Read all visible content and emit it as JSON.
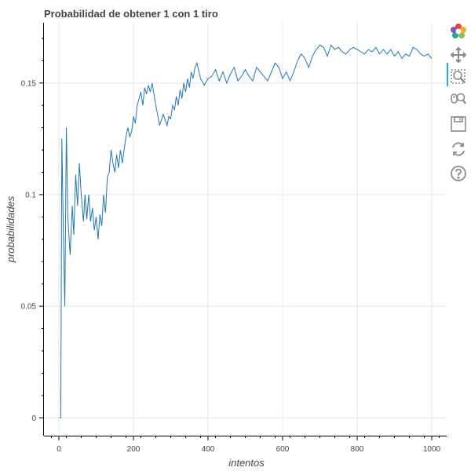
{
  "chart_data": {
    "type": "line",
    "title": "Probabilidad de obtener 1 con 1 tiro",
    "xlabel": "intentos",
    "ylabel": "probabilidades",
    "xlim": [
      -40,
      1040
    ],
    "ylim": [
      -0.008,
      0.177
    ],
    "xticks": [
      0,
      200,
      400,
      600,
      800,
      1000
    ],
    "xtick_labels": [
      "0",
      "200",
      "400",
      "600",
      "800",
      "1000"
    ],
    "yticks": [
      0,
      0.05,
      0.1,
      0.15
    ],
    "ytick_labels": [
      "0",
      "0.05",
      "0.1",
      "0.15"
    ],
    "grid": true,
    "series": [
      {
        "color": "#1f77b4",
        "x": [
          1,
          5,
          8,
          12,
          16,
          20,
          24,
          30,
          36,
          40,
          45,
          50,
          55,
          60,
          66,
          70,
          75,
          80,
          85,
          90,
          95,
          100,
          105,
          110,
          115,
          120,
          125,
          130,
          135,
          140,
          145,
          150,
          155,
          160,
          165,
          170,
          175,
          180,
          185,
          190,
          195,
          200,
          205,
          210,
          215,
          220,
          225,
          230,
          235,
          240,
          245,
          250,
          260,
          270,
          280,
          290,
          295,
          300,
          305,
          310,
          315,
          320,
          325,
          330,
          335,
          340,
          345,
          350,
          355,
          360,
          365,
          370,
          380,
          390,
          400,
          410,
          420,
          430,
          440,
          450,
          460,
          470,
          480,
          490,
          500,
          510,
          520,
          530,
          540,
          550,
          560,
          570,
          580,
          590,
          600,
          610,
          620,
          630,
          640,
          650,
          660,
          670,
          680,
          690,
          700,
          710,
          720,
          730,
          740,
          750,
          760,
          770,
          780,
          790,
          800,
          810,
          820,
          830,
          840,
          850,
          860,
          870,
          880,
          890,
          900,
          910,
          920,
          930,
          940,
          950,
          960,
          970,
          980,
          990,
          1000
        ],
        "y": [
          0,
          0,
          0.125,
          0.083,
          0.05,
          0.13,
          0.09,
          0.073,
          0.095,
          0.082,
          0.109,
          0.095,
          0.114,
          0.1,
          0.088,
          0.1,
          0.089,
          0.1,
          0.088,
          0.094,
          0.084,
          0.09,
          0.08,
          0.091,
          0.086,
          0.1,
          0.092,
          0.108,
          0.11,
          0.12,
          0.114,
          0.11,
          0.118,
          0.112,
          0.12,
          0.114,
          0.12,
          0.126,
          0.13,
          0.126,
          0.128,
          0.135,
          0.132,
          0.14,
          0.143,
          0.146,
          0.14,
          0.148,
          0.145,
          0.149,
          0.146,
          0.15,
          0.14,
          0.131,
          0.136,
          0.131,
          0.135,
          0.134,
          0.14,
          0.138,
          0.144,
          0.14,
          0.147,
          0.143,
          0.15,
          0.146,
          0.152,
          0.148,
          0.155,
          0.152,
          0.157,
          0.159,
          0.152,
          0.149,
          0.152,
          0.153,
          0.156,
          0.151,
          0.155,
          0.15,
          0.154,
          0.157,
          0.151,
          0.153,
          0.156,
          0.153,
          0.151,
          0.157,
          0.155,
          0.153,
          0.151,
          0.155,
          0.159,
          0.157,
          0.152,
          0.155,
          0.151,
          0.155,
          0.16,
          0.163,
          0.161,
          0.157,
          0.162,
          0.165,
          0.167,
          0.166,
          0.162,
          0.167,
          0.165,
          0.166,
          0.164,
          0.163,
          0.165,
          0.166,
          0.165,
          0.164,
          0.163,
          0.165,
          0.164,
          0.166,
          0.163,
          0.165,
          0.163,
          0.165,
          0.162,
          0.164,
          0.161,
          0.163,
          0.162,
          0.166,
          0.165,
          0.163,
          0.162,
          0.163,
          0.161
        ]
      }
    ]
  },
  "toolbar": {
    "tools": [
      {
        "icon": "bokeh-logo-icon",
        "active": false
      },
      {
        "icon": "pan-icon",
        "active": true
      },
      {
        "icon": "box-zoom-icon",
        "active": false
      },
      {
        "icon": "wheel-zoom-icon",
        "active": false
      },
      {
        "icon": "save-icon",
        "active": false
      },
      {
        "icon": "reset-icon",
        "active": false
      },
      {
        "icon": "help-icon",
        "active": false
      }
    ]
  }
}
